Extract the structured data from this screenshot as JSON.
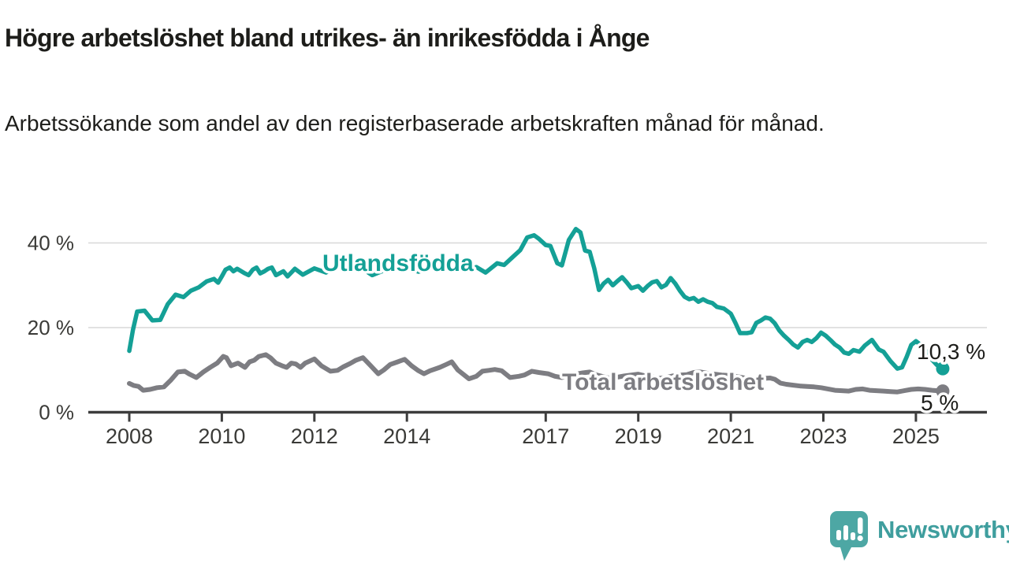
{
  "title": "Högre arbetslöshet bland utrikes- än inrikesfödda i Ånge",
  "subtitle": "Arbetssökande som andel av den registerbaserade arbetskraften månad för månad.",
  "logo": {
    "text": "Newsworthy",
    "color": "#3f9e9e",
    "icon": "speech-bubble-bar-chart"
  },
  "chart_data": {
    "type": "line",
    "title": "Högre arbetslöshet bland utrikes- än inrikesfödda i Ånge",
    "xlabel": "",
    "ylabel": "Arbetssökande som andel av den registerbaserade arbetskraften",
    "grid": true,
    "legend_position": "inline",
    "x_axis": {
      "range": [
        2007.6,
        2026.5
      ],
      "ticks": [
        2008,
        2010,
        2012,
        2014,
        2017,
        2019,
        2021,
        2023,
        2025
      ],
      "labels": [
        "2008",
        "2010",
        "2012",
        "2014",
        "2017",
        "2019",
        "2021",
        "2023",
        "2025"
      ]
    },
    "y_axis": {
      "range": [
        0,
        47
      ],
      "ticks": [
        0,
        20,
        40
      ],
      "labels": [
        "0 %",
        "20 %",
        "40 %"
      ]
    },
    "series": [
      {
        "name": "Total arbetslöshet",
        "color": "#7d7d82",
        "end_label": "5 %",
        "end_value": 5.0,
        "points": [
          [
            2008.0,
            6.8
          ],
          [
            2008.1,
            6.3
          ],
          [
            2008.2,
            6.1
          ],
          [
            2008.3,
            5.2
          ],
          [
            2008.45,
            5.4
          ],
          [
            2008.6,
            5.8
          ],
          [
            2008.75,
            6.0
          ],
          [
            2008.9,
            7.6
          ],
          [
            2009.05,
            9.5
          ],
          [
            2009.2,
            9.7
          ],
          [
            2009.3,
            9.0
          ],
          [
            2009.45,
            8.2
          ],
          [
            2009.6,
            9.5
          ],
          [
            2009.75,
            10.6
          ],
          [
            2009.9,
            11.6
          ],
          [
            2010.03,
            13.2
          ],
          [
            2010.1,
            12.9
          ],
          [
            2010.2,
            11.0
          ],
          [
            2010.35,
            11.6
          ],
          [
            2010.5,
            10.6
          ],
          [
            2010.6,
            11.9
          ],
          [
            2010.7,
            12.3
          ],
          [
            2010.8,
            13.2
          ],
          [
            2010.95,
            13.6
          ],
          [
            2011.05,
            12.9
          ],
          [
            2011.17,
            11.6
          ],
          [
            2011.3,
            11.0
          ],
          [
            2011.4,
            10.6
          ],
          [
            2011.5,
            11.6
          ],
          [
            2011.6,
            11.4
          ],
          [
            2011.7,
            10.6
          ],
          [
            2011.8,
            11.6
          ],
          [
            2011.9,
            12.1
          ],
          [
            2012.0,
            12.6
          ],
          [
            2012.15,
            11.0
          ],
          [
            2012.35,
            9.7
          ],
          [
            2012.5,
            9.9
          ],
          [
            2012.62,
            10.7
          ],
          [
            2012.77,
            11.5
          ],
          [
            2012.9,
            12.3
          ],
          [
            2013.05,
            12.9
          ],
          [
            2013.2,
            11.2
          ],
          [
            2013.38,
            9.1
          ],
          [
            2013.5,
            10.0
          ],
          [
            2013.64,
            11.3
          ],
          [
            2013.8,
            11.9
          ],
          [
            2013.95,
            12.5
          ],
          [
            2014.1,
            11.0
          ],
          [
            2014.25,
            9.8
          ],
          [
            2014.37,
            9.1
          ],
          [
            2014.5,
            9.8
          ],
          [
            2014.71,
            10.6
          ],
          [
            2014.85,
            11.3
          ],
          [
            2014.97,
            11.9
          ],
          [
            2015.1,
            10.0
          ],
          [
            2015.34,
            7.9
          ],
          [
            2015.5,
            8.5
          ],
          [
            2015.63,
            9.7
          ],
          [
            2015.77,
            9.9
          ],
          [
            2015.9,
            10.1
          ],
          [
            2016.05,
            9.8
          ],
          [
            2016.23,
            8.2
          ],
          [
            2016.42,
            8.5
          ],
          [
            2016.54,
            8.8
          ],
          [
            2016.7,
            9.7
          ],
          [
            2016.85,
            9.4
          ],
          [
            2017.05,
            9.1
          ],
          [
            2017.2,
            8.5
          ],
          [
            2017.35,
            8.2
          ],
          [
            2017.5,
            8.7
          ],
          [
            2017.65,
            9.0
          ],
          [
            2017.8,
            9.3
          ],
          [
            2017.95,
            9.5
          ],
          [
            2018.1,
            8.8
          ],
          [
            2018.25,
            8.4
          ],
          [
            2018.4,
            8.0
          ],
          [
            2018.55,
            8.3
          ],
          [
            2018.7,
            8.6
          ],
          [
            2018.85,
            8.8
          ],
          [
            2019.0,
            9.0
          ],
          [
            2019.15,
            8.6
          ],
          [
            2019.3,
            8.4
          ],
          [
            2019.45,
            8.0
          ],
          [
            2019.6,
            8.2
          ],
          [
            2019.75,
            8.6
          ],
          [
            2019.9,
            8.8
          ],
          [
            2020.05,
            8.9
          ],
          [
            2020.2,
            9.4
          ],
          [
            2020.35,
            9.5
          ],
          [
            2020.5,
            9.2
          ],
          [
            2020.65,
            9.0
          ],
          [
            2020.8,
            8.8
          ],
          [
            2020.95,
            8.7
          ],
          [
            2021.1,
            8.5
          ],
          [
            2021.25,
            8.2
          ],
          [
            2021.4,
            7.9
          ],
          [
            2021.55,
            7.8
          ],
          [
            2021.7,
            8.0
          ],
          [
            2021.85,
            8.1
          ],
          [
            2021.95,
            7.8
          ],
          [
            2022.07,
            6.9
          ],
          [
            2022.2,
            6.6
          ],
          [
            2022.35,
            6.4
          ],
          [
            2022.5,
            6.2
          ],
          [
            2022.65,
            6.1
          ],
          [
            2022.8,
            6.0
          ],
          [
            2022.95,
            5.8
          ],
          [
            2023.1,
            5.5
          ],
          [
            2023.25,
            5.2
          ],
          [
            2023.4,
            5.1
          ],
          [
            2023.55,
            5.0
          ],
          [
            2023.7,
            5.4
          ],
          [
            2023.85,
            5.5
          ],
          [
            2024.0,
            5.2
          ],
          [
            2024.15,
            5.1
          ],
          [
            2024.3,
            5.0
          ],
          [
            2024.45,
            4.9
          ],
          [
            2024.6,
            4.8
          ],
          [
            2024.75,
            5.1
          ],
          [
            2024.9,
            5.4
          ],
          [
            2025.05,
            5.5
          ],
          [
            2025.2,
            5.4
          ],
          [
            2025.35,
            5.2
          ],
          [
            2025.58,
            5.0
          ]
        ]
      },
      {
        "name": "Utlandsfödda",
        "color": "#14a096",
        "end_label": "10,3 %",
        "end_value": 10.3,
        "points": [
          [
            2008.0,
            14.5
          ],
          [
            2008.08,
            19.5
          ],
          [
            2008.17,
            23.8
          ],
          [
            2008.33,
            24.0
          ],
          [
            2008.5,
            21.7
          ],
          [
            2008.67,
            21.8
          ],
          [
            2008.83,
            25.5
          ],
          [
            2009.0,
            27.8
          ],
          [
            2009.17,
            27.2
          ],
          [
            2009.33,
            28.7
          ],
          [
            2009.5,
            29.5
          ],
          [
            2009.67,
            30.9
          ],
          [
            2009.83,
            31.5
          ],
          [
            2009.92,
            30.6
          ],
          [
            2010.0,
            32.1
          ],
          [
            2010.08,
            33.7
          ],
          [
            2010.17,
            34.2
          ],
          [
            2010.25,
            33.3
          ],
          [
            2010.33,
            33.9
          ],
          [
            2010.5,
            32.8
          ],
          [
            2010.58,
            32.4
          ],
          [
            2010.67,
            33.7
          ],
          [
            2010.75,
            34.2
          ],
          [
            2010.83,
            32.8
          ],
          [
            2010.92,
            33.3
          ],
          [
            2011.0,
            33.9
          ],
          [
            2011.08,
            34.2
          ],
          [
            2011.17,
            32.4
          ],
          [
            2011.33,
            33.3
          ],
          [
            2011.42,
            32.1
          ],
          [
            2011.5,
            33.0
          ],
          [
            2011.58,
            33.9
          ],
          [
            2011.75,
            32.5
          ],
          [
            2012.0,
            34.0
          ],
          [
            2012.25,
            33.0
          ],
          [
            2012.5,
            34.5
          ],
          [
            2012.75,
            33.5
          ],
          [
            2013.0,
            34.2
          ],
          [
            2013.25,
            32.4
          ],
          [
            2013.5,
            33.5
          ],
          [
            2013.75,
            34.5
          ],
          [
            2014.0,
            34.0
          ],
          [
            2014.25,
            33.2
          ],
          [
            2014.5,
            34.0
          ],
          [
            2014.75,
            35.0
          ],
          [
            2015.0,
            34.2
          ],
          [
            2015.25,
            33.5
          ],
          [
            2015.5,
            34.3
          ],
          [
            2015.7,
            33.0
          ],
          [
            2015.95,
            35.2
          ],
          [
            2016.1,
            34.8
          ],
          [
            2016.3,
            36.8
          ],
          [
            2016.45,
            38.3
          ],
          [
            2016.6,
            41.3
          ],
          [
            2016.75,
            41.8
          ],
          [
            2016.85,
            41.0
          ],
          [
            2017.0,
            39.5
          ],
          [
            2017.1,
            39.3
          ],
          [
            2017.25,
            35.2
          ],
          [
            2017.35,
            34.7
          ],
          [
            2017.5,
            40.7
          ],
          [
            2017.65,
            43.3
          ],
          [
            2017.75,
            42.5
          ],
          [
            2017.85,
            38.2
          ],
          [
            2017.95,
            37.9
          ],
          [
            2018.05,
            34.0
          ],
          [
            2018.15,
            28.9
          ],
          [
            2018.25,
            30.4
          ],
          [
            2018.35,
            31.3
          ],
          [
            2018.45,
            30.0
          ],
          [
            2018.55,
            31.0
          ],
          [
            2018.65,
            31.9
          ],
          [
            2018.75,
            30.7
          ],
          [
            2018.85,
            29.3
          ],
          [
            2019.0,
            29.8
          ],
          [
            2019.1,
            28.7
          ],
          [
            2019.2,
            29.8
          ],
          [
            2019.3,
            30.7
          ],
          [
            2019.4,
            31.0
          ],
          [
            2019.5,
            29.5
          ],
          [
            2019.6,
            30.1
          ],
          [
            2019.7,
            31.7
          ],
          [
            2019.8,
            30.4
          ],
          [
            2019.9,
            28.7
          ],
          [
            2020.0,
            27.3
          ],
          [
            2020.1,
            26.7
          ],
          [
            2020.2,
            27.0
          ],
          [
            2020.3,
            26.1
          ],
          [
            2020.4,
            26.7
          ],
          [
            2020.5,
            26.1
          ],
          [
            2020.6,
            25.8
          ],
          [
            2020.7,
            24.9
          ],
          [
            2020.85,
            24.5
          ],
          [
            2021.0,
            23.3
          ],
          [
            2021.1,
            21.1
          ],
          [
            2021.2,
            18.7
          ],
          [
            2021.35,
            18.7
          ],
          [
            2021.45,
            18.9
          ],
          [
            2021.55,
            21.1
          ],
          [
            2021.65,
            21.7
          ],
          [
            2021.75,
            22.4
          ],
          [
            2021.85,
            22.1
          ],
          [
            2021.95,
            21.0
          ],
          [
            2022.05,
            19.3
          ],
          [
            2022.15,
            18.1
          ],
          [
            2022.25,
            17.1
          ],
          [
            2022.35,
            16.0
          ],
          [
            2022.45,
            15.3
          ],
          [
            2022.55,
            16.6
          ],
          [
            2022.65,
            17.1
          ],
          [
            2022.75,
            16.6
          ],
          [
            2022.85,
            17.5
          ],
          [
            2022.95,
            18.8
          ],
          [
            2023.05,
            18.1
          ],
          [
            2023.15,
            17.1
          ],
          [
            2023.25,
            16.0
          ],
          [
            2023.35,
            15.3
          ],
          [
            2023.45,
            14.1
          ],
          [
            2023.55,
            13.8
          ],
          [
            2023.65,
            14.7
          ],
          [
            2023.78,
            14.3
          ],
          [
            2023.9,
            15.8
          ],
          [
            2024.05,
            17.1
          ],
          [
            2024.2,
            14.8
          ],
          [
            2024.3,
            14.3
          ],
          [
            2024.45,
            12.1
          ],
          [
            2024.6,
            10.3
          ],
          [
            2024.7,
            10.6
          ],
          [
            2024.8,
            13.1
          ],
          [
            2024.9,
            15.9
          ],
          [
            2025.0,
            16.8
          ],
          [
            2025.15,
            15.5
          ],
          [
            2025.3,
            13.0
          ],
          [
            2025.45,
            11.2
          ],
          [
            2025.58,
            10.3
          ]
        ]
      }
    ]
  }
}
